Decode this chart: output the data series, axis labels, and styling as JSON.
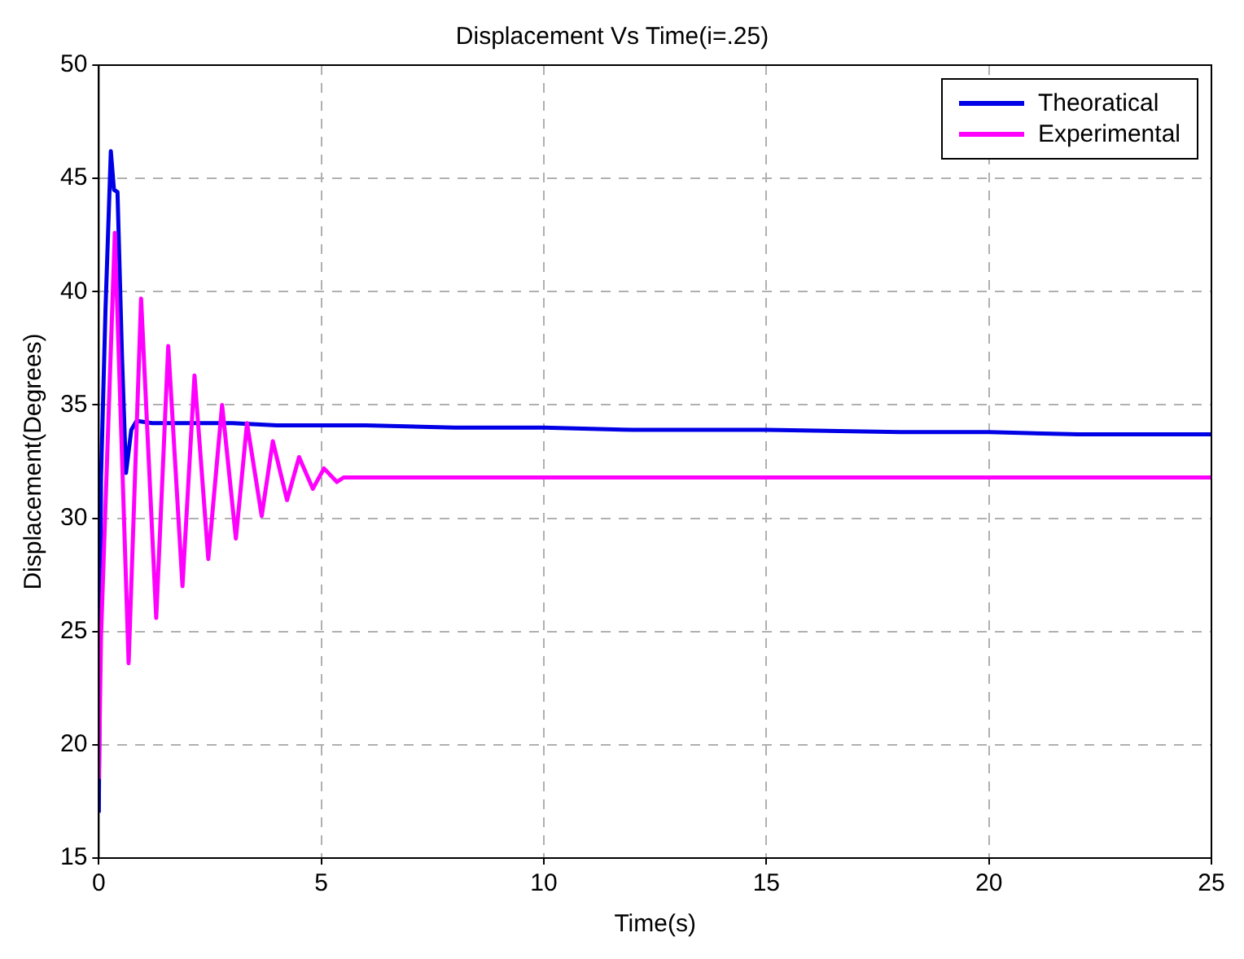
{
  "chart_data": {
    "type": "line",
    "title": "Displacement Vs Time(i=.25)",
    "xlabel": "Time(s)",
    "ylabel": "Displacement(Degrees)",
    "xlim": [
      0,
      25
    ],
    "xticks": [
      0,
      5,
      10,
      15,
      20,
      25
    ],
    "ylim": [
      15,
      50
    ],
    "yticks": [
      15,
      20,
      25,
      30,
      35,
      40,
      45,
      50
    ],
    "grid": true,
    "legend": "top right",
    "line_style": "solid",
    "marker": "none",
    "series": [
      {
        "name": "Theoratical",
        "color": "#0000e6",
        "x": [
          0,
          0.05,
          0.15,
          0.27,
          0.34,
          0.42,
          0.52,
          0.61,
          0.73,
          0.85,
          1.2,
          2,
          3,
          4,
          6,
          8,
          10,
          12,
          15,
          18,
          20,
          22,
          25
        ],
        "values": [
          17,
          31.8,
          39.2,
          46.2,
          44.5,
          44.4,
          37.2,
          32.0,
          33.9,
          34.3,
          34.2,
          34.2,
          34.2,
          34.1,
          34.1,
          34.0,
          34.0,
          33.9,
          33.9,
          33.8,
          33.8,
          33.7,
          33.7
        ]
      },
      {
        "name": "Experimental",
        "color": "#ff00ff",
        "x": [
          0,
          0.05,
          0.36,
          0.67,
          0.95,
          1.29,
          1.56,
          1.88,
          2.15,
          2.46,
          2.77,
          3.08,
          3.33,
          3.66,
          3.91,
          4.23,
          4.5,
          4.81,
          5.06,
          5.35,
          5.5,
          25
        ],
        "values": [
          18.5,
          24.8,
          42.6,
          23.6,
          39.7,
          25.6,
          37.6,
          27.0,
          36.3,
          28.2,
          35.0,
          29.1,
          34.2,
          30.1,
          33.4,
          30.8,
          32.7,
          31.3,
          32.2,
          31.6,
          31.8,
          31.8
        ]
      }
    ]
  }
}
